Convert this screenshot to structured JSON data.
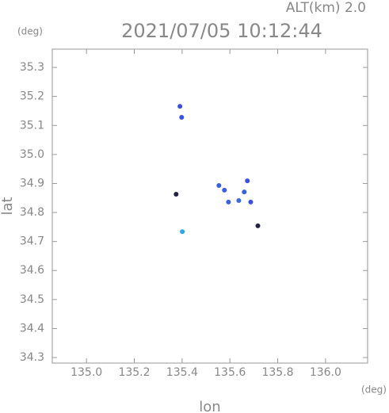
{
  "chart_data": {
    "type": "scatter",
    "title": "2021/07/05 10:12:44",
    "subtitle": "ALT(km) 2.0",
    "y_unit": "(deg)",
    "x_unit": "(deg)",
    "xlabel": "lon",
    "ylabel": "lat",
    "x": [
      135.391,
      135.398,
      135.375,
      135.401,
      135.554,
      135.577,
      135.594,
      135.637,
      135.66,
      135.673,
      135.687,
      135.717
    ],
    "y": [
      35.166,
      35.128,
      34.863,
      34.734,
      34.893,
      34.877,
      34.836,
      34.841,
      34.871,
      34.909,
      34.836,
      34.754
    ],
    "colors": [
      "#3a4fe6",
      "#3a4fe6",
      "#222244",
      "#2aa8e8",
      "#3a5ee8",
      "#3a5ee8",
      "#3a5ee8",
      "#3a6ae8",
      "#3a5ee8",
      "#3a4fe6",
      "#3a4fe6",
      "#222244"
    ],
    "xlim": [
      134.857,
      136.176
    ],
    "ylim": [
      34.281,
      35.363
    ],
    "xticks": [
      {
        "value": 135,
        "label": "135.0"
      },
      135.2,
      135.4,
      135.6,
      135.8,
      {
        "value": 136,
        "label": "136.0"
      }
    ],
    "yticks": [
      34.3,
      34.4,
      34.5,
      34.6,
      34.7,
      34.8,
      34.9,
      {
        "value": 35,
        "label": "35.0"
      },
      35.1,
      35.2,
      35.3
    ]
  }
}
